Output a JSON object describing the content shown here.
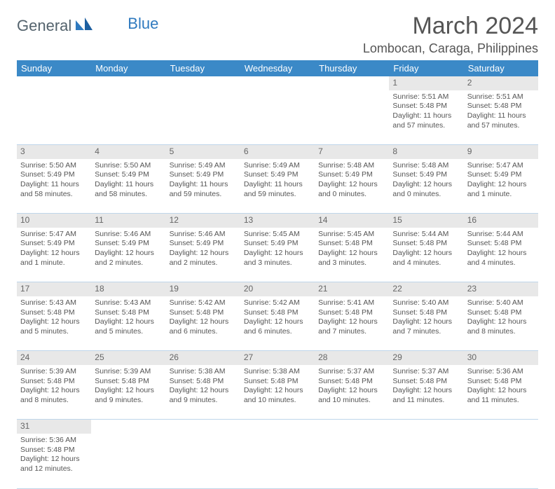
{
  "colors": {
    "header_bg": "#3b89c7",
    "header_text": "#ffffff",
    "daynum_bg": "#e8e8e8",
    "cell_border": "#bfd6ea",
    "body_text": "#555555",
    "logo_gray": "#54636d",
    "logo_blue": "#2f7abf"
  },
  "logo": {
    "part1": "General",
    "part2": "Blue"
  },
  "title": "March 2024",
  "location": "Lombocan, Caraga, Philippines",
  "weekdays": [
    "Sunday",
    "Monday",
    "Tuesday",
    "Wednesday",
    "Thursday",
    "Friday",
    "Saturday"
  ],
  "weeks": [
    {
      "nums": [
        "",
        "",
        "",
        "",
        "",
        "1",
        "2"
      ],
      "cells": [
        null,
        null,
        null,
        null,
        null,
        {
          "sunrise": "Sunrise: 5:51 AM",
          "sunset": "Sunset: 5:48 PM",
          "daylight": "Daylight: 11 hours and 57 minutes."
        },
        {
          "sunrise": "Sunrise: 5:51 AM",
          "sunset": "Sunset: 5:48 PM",
          "daylight": "Daylight: 11 hours and 57 minutes."
        }
      ]
    },
    {
      "nums": [
        "3",
        "4",
        "5",
        "6",
        "7",
        "8",
        "9"
      ],
      "cells": [
        {
          "sunrise": "Sunrise: 5:50 AM",
          "sunset": "Sunset: 5:49 PM",
          "daylight": "Daylight: 11 hours and 58 minutes."
        },
        {
          "sunrise": "Sunrise: 5:50 AM",
          "sunset": "Sunset: 5:49 PM",
          "daylight": "Daylight: 11 hours and 58 minutes."
        },
        {
          "sunrise": "Sunrise: 5:49 AM",
          "sunset": "Sunset: 5:49 PM",
          "daylight": "Daylight: 11 hours and 59 minutes."
        },
        {
          "sunrise": "Sunrise: 5:49 AM",
          "sunset": "Sunset: 5:49 PM",
          "daylight": "Daylight: 11 hours and 59 minutes."
        },
        {
          "sunrise": "Sunrise: 5:48 AM",
          "sunset": "Sunset: 5:49 PM",
          "daylight": "Daylight: 12 hours and 0 minutes."
        },
        {
          "sunrise": "Sunrise: 5:48 AM",
          "sunset": "Sunset: 5:49 PM",
          "daylight": "Daylight: 12 hours and 0 minutes."
        },
        {
          "sunrise": "Sunrise: 5:47 AM",
          "sunset": "Sunset: 5:49 PM",
          "daylight": "Daylight: 12 hours and 1 minute."
        }
      ]
    },
    {
      "nums": [
        "10",
        "11",
        "12",
        "13",
        "14",
        "15",
        "16"
      ],
      "cells": [
        {
          "sunrise": "Sunrise: 5:47 AM",
          "sunset": "Sunset: 5:49 PM",
          "daylight": "Daylight: 12 hours and 1 minute."
        },
        {
          "sunrise": "Sunrise: 5:46 AM",
          "sunset": "Sunset: 5:49 PM",
          "daylight": "Daylight: 12 hours and 2 minutes."
        },
        {
          "sunrise": "Sunrise: 5:46 AM",
          "sunset": "Sunset: 5:49 PM",
          "daylight": "Daylight: 12 hours and 2 minutes."
        },
        {
          "sunrise": "Sunrise: 5:45 AM",
          "sunset": "Sunset: 5:49 PM",
          "daylight": "Daylight: 12 hours and 3 minutes."
        },
        {
          "sunrise": "Sunrise: 5:45 AM",
          "sunset": "Sunset: 5:48 PM",
          "daylight": "Daylight: 12 hours and 3 minutes."
        },
        {
          "sunrise": "Sunrise: 5:44 AM",
          "sunset": "Sunset: 5:48 PM",
          "daylight": "Daylight: 12 hours and 4 minutes."
        },
        {
          "sunrise": "Sunrise: 5:44 AM",
          "sunset": "Sunset: 5:48 PM",
          "daylight": "Daylight: 12 hours and 4 minutes."
        }
      ]
    },
    {
      "nums": [
        "17",
        "18",
        "19",
        "20",
        "21",
        "22",
        "23"
      ],
      "cells": [
        {
          "sunrise": "Sunrise: 5:43 AM",
          "sunset": "Sunset: 5:48 PM",
          "daylight": "Daylight: 12 hours and 5 minutes."
        },
        {
          "sunrise": "Sunrise: 5:43 AM",
          "sunset": "Sunset: 5:48 PM",
          "daylight": "Daylight: 12 hours and 5 minutes."
        },
        {
          "sunrise": "Sunrise: 5:42 AM",
          "sunset": "Sunset: 5:48 PM",
          "daylight": "Daylight: 12 hours and 6 minutes."
        },
        {
          "sunrise": "Sunrise: 5:42 AM",
          "sunset": "Sunset: 5:48 PM",
          "daylight": "Daylight: 12 hours and 6 minutes."
        },
        {
          "sunrise": "Sunrise: 5:41 AM",
          "sunset": "Sunset: 5:48 PM",
          "daylight": "Daylight: 12 hours and 7 minutes."
        },
        {
          "sunrise": "Sunrise: 5:40 AM",
          "sunset": "Sunset: 5:48 PM",
          "daylight": "Daylight: 12 hours and 7 minutes."
        },
        {
          "sunrise": "Sunrise: 5:40 AM",
          "sunset": "Sunset: 5:48 PM",
          "daylight": "Daylight: 12 hours and 8 minutes."
        }
      ]
    },
    {
      "nums": [
        "24",
        "25",
        "26",
        "27",
        "28",
        "29",
        "30"
      ],
      "cells": [
        {
          "sunrise": "Sunrise: 5:39 AM",
          "sunset": "Sunset: 5:48 PM",
          "daylight": "Daylight: 12 hours and 8 minutes."
        },
        {
          "sunrise": "Sunrise: 5:39 AM",
          "sunset": "Sunset: 5:48 PM",
          "daylight": "Daylight: 12 hours and 9 minutes."
        },
        {
          "sunrise": "Sunrise: 5:38 AM",
          "sunset": "Sunset: 5:48 PM",
          "daylight": "Daylight: 12 hours and 9 minutes."
        },
        {
          "sunrise": "Sunrise: 5:38 AM",
          "sunset": "Sunset: 5:48 PM",
          "daylight": "Daylight: 12 hours and 10 minutes."
        },
        {
          "sunrise": "Sunrise: 5:37 AM",
          "sunset": "Sunset: 5:48 PM",
          "daylight": "Daylight: 12 hours and 10 minutes."
        },
        {
          "sunrise": "Sunrise: 5:37 AM",
          "sunset": "Sunset: 5:48 PM",
          "daylight": "Daylight: 12 hours and 11 minutes."
        },
        {
          "sunrise": "Sunrise: 5:36 AM",
          "sunset": "Sunset: 5:48 PM",
          "daylight": "Daylight: 12 hours and 11 minutes."
        }
      ]
    },
    {
      "nums": [
        "31",
        "",
        "",
        "",
        "",
        "",
        ""
      ],
      "cells": [
        {
          "sunrise": "Sunrise: 5:36 AM",
          "sunset": "Sunset: 5:48 PM",
          "daylight": "Daylight: 12 hours and 12 minutes."
        },
        null,
        null,
        null,
        null,
        null,
        null
      ]
    }
  ]
}
